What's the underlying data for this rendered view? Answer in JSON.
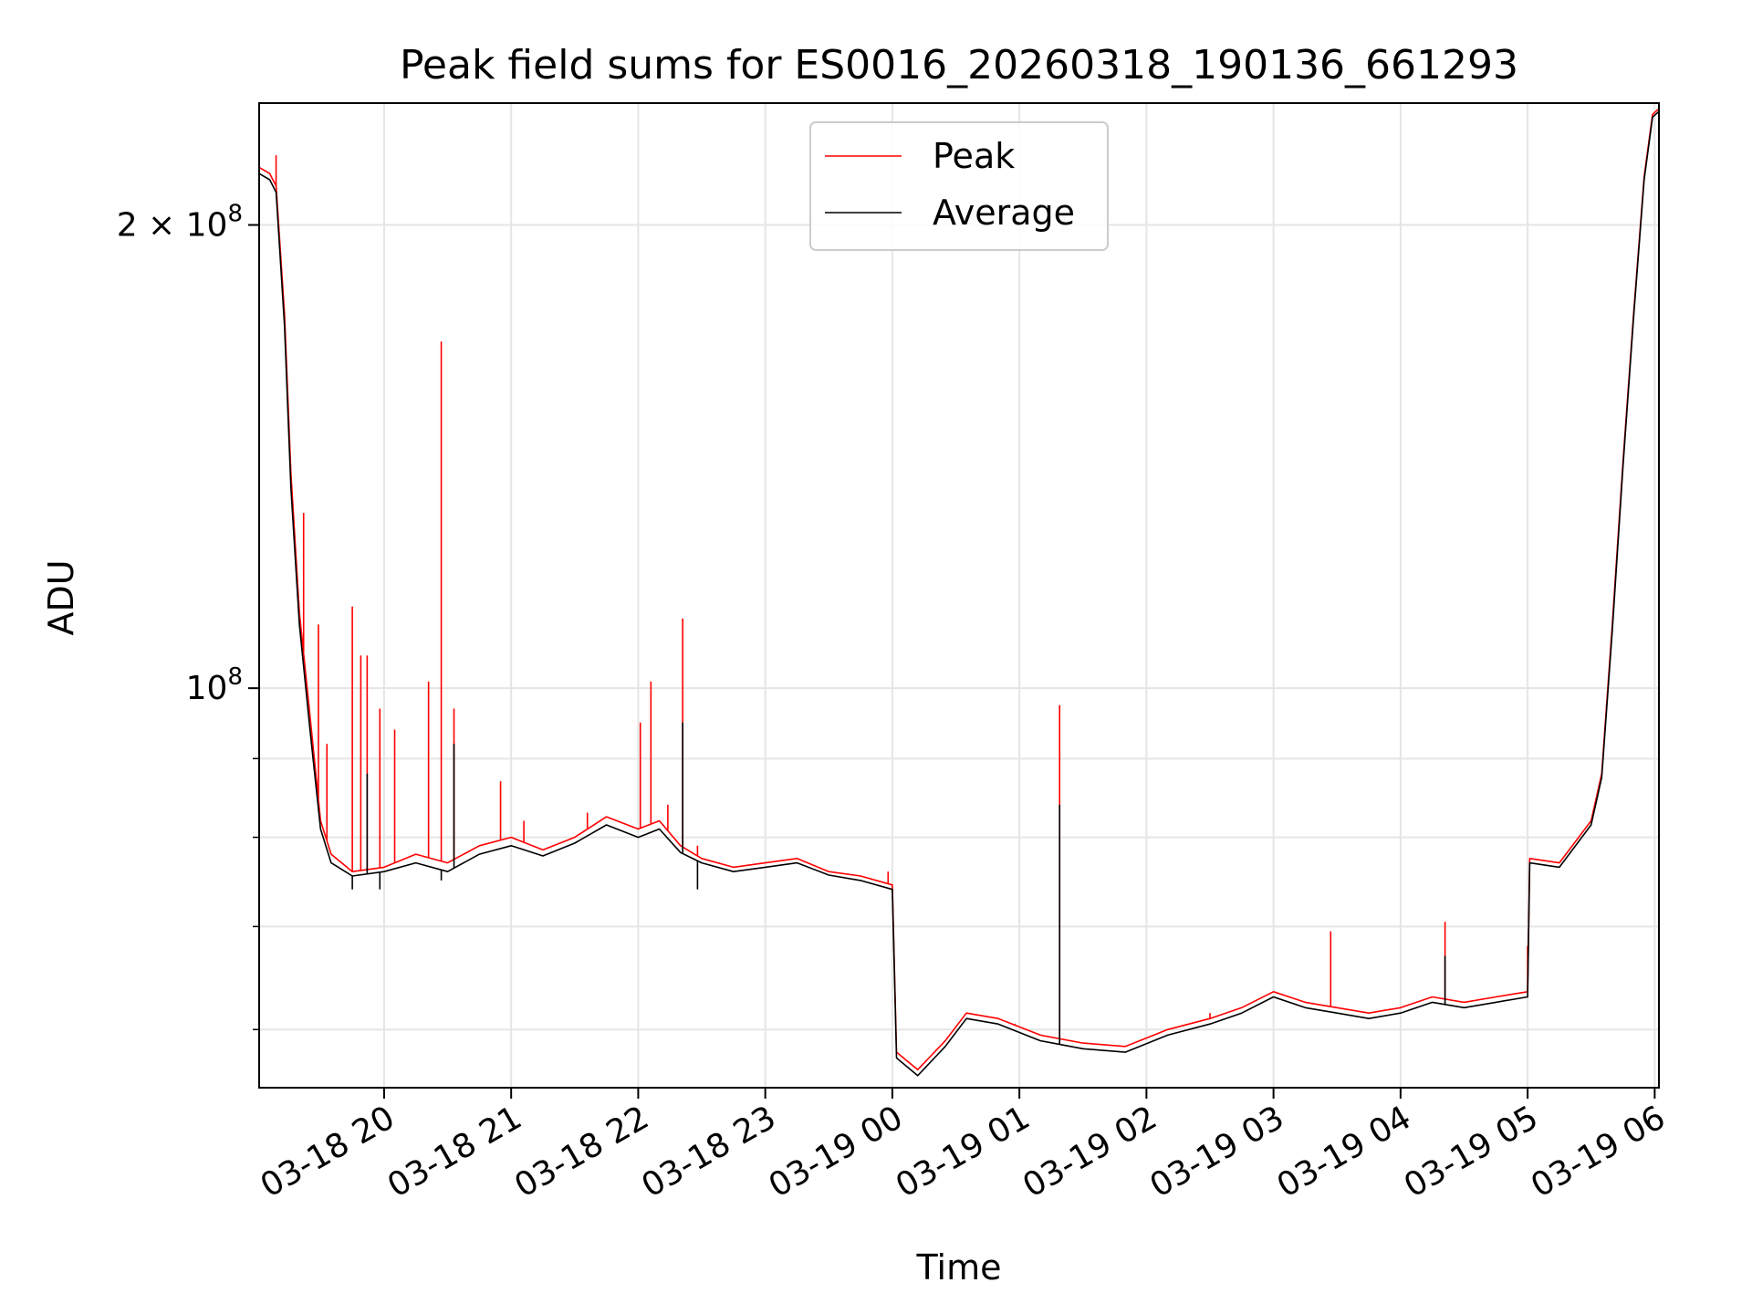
{
  "chart_data": {
    "type": "line",
    "title": "Peak field sums for ES0016_20260318_190136_661293",
    "xlabel": "Time",
    "ylabel": "ADU",
    "y_scale": "log",
    "x_range": [
      "03-18 19:01",
      "03-19 06:02"
    ],
    "ylim": [
      55000000,
      240000000
    ],
    "grid": true,
    "legend": {
      "placement": "top-center",
      "entries": [
        "Peak",
        "Average"
      ]
    },
    "x_ticks": [
      "03-18 20",
      "03-18 21",
      "03-18 22",
      "03-18 23",
      "03-19 00",
      "03-19 01",
      "03-19 02",
      "03-19 03",
      "03-19 04",
      "03-19 05",
      "03-19 06"
    ],
    "x_tick_times": [
      "03-18 20:00",
      "03-18 21:00",
      "03-18 22:00",
      "03-18 23:00",
      "03-19 00:00",
      "03-19 01:00",
      "03-19 02:00",
      "03-19 03:00",
      "03-19 04:00",
      "03-19 05:00",
      "03-19 06:00"
    ],
    "y_major_ticks": [
      {
        "value": 100000000,
        "mantissa": "",
        "exponent": "8"
      },
      {
        "value": 200000000,
        "mantissa": "2 × ",
        "exponent": "8"
      }
    ],
    "y_minor_ticks": [
      60000000,
      70000000,
      80000000,
      90000000
    ],
    "series": [
      {
        "name": "Peak",
        "color": "#ff0000",
        "points": [
          [
            "03-18 19:01",
            218000000
          ],
          [
            "03-18 19:06",
            216000000
          ],
          [
            "03-18 19:09",
            212000000
          ],
          [
            "03-18 19:13",
            175000000
          ],
          [
            "03-18 19:16",
            138000000
          ],
          [
            "03-18 19:20",
            112000000
          ],
          [
            "03-18 19:25",
            96000000
          ],
          [
            "03-18 19:30",
            82000000
          ],
          [
            "03-18 19:35",
            78000000
          ],
          [
            "03-18 19:45",
            76000000
          ],
          [
            "03-18 20:00",
            76500000
          ],
          [
            "03-18 20:15",
            78000000
          ],
          [
            "03-18 20:30",
            77000000
          ],
          [
            "03-18 20:45",
            79000000
          ],
          [
            "03-18 21:00",
            80000000
          ],
          [
            "03-18 21:15",
            78500000
          ],
          [
            "03-18 21:30",
            80000000
          ],
          [
            "03-18 21:45",
            82500000
          ],
          [
            "03-18 22:00",
            81000000
          ],
          [
            "03-18 22:10",
            82000000
          ],
          [
            "03-18 22:20",
            79000000
          ],
          [
            "03-18 22:30",
            77500000
          ],
          [
            "03-18 22:45",
            76500000
          ],
          [
            "03-18 23:00",
            77000000
          ],
          [
            "03-18 23:15",
            77500000
          ],
          [
            "03-18 23:30",
            76000000
          ],
          [
            "03-18 23:45",
            75500000
          ],
          [
            "03-19 00:00",
            74500000
          ],
          [
            "03-19 00:02",
            58000000
          ],
          [
            "03-19 00:12",
            56500000
          ],
          [
            "03-19 00:25",
            59000000
          ],
          [
            "03-19 00:35",
            61500000
          ],
          [
            "03-19 00:50",
            61000000
          ],
          [
            "03-19 01:10",
            59500000
          ],
          [
            "03-19 01:30",
            58800000
          ],
          [
            "03-19 01:50",
            58500000
          ],
          [
            "03-19 02:10",
            60000000
          ],
          [
            "03-19 02:30",
            61000000
          ],
          [
            "03-19 02:45",
            62000000
          ],
          [
            "03-19 03:00",
            63500000
          ],
          [
            "03-19 03:15",
            62500000
          ],
          [
            "03-19 03:30",
            62000000
          ],
          [
            "03-19 03:45",
            61500000
          ],
          [
            "03-19 04:00",
            62000000
          ],
          [
            "03-19 04:15",
            63000000
          ],
          [
            "03-19 04:30",
            62500000
          ],
          [
            "03-19 04:45",
            63000000
          ],
          [
            "03-19 05:00",
            63500000
          ],
          [
            "03-19 05:01",
            77500000
          ],
          [
            "03-19 05:15",
            77000000
          ],
          [
            "03-19 05:30",
            82000000
          ],
          [
            "03-19 05:35",
            88000000
          ],
          [
            "03-19 05:40",
            110000000
          ],
          [
            "03-19 05:45",
            140000000
          ],
          [
            "03-19 05:50",
            175000000
          ],
          [
            "03-19 05:55",
            215000000
          ],
          [
            "03-19 05:59",
            236000000
          ],
          [
            "03-19 06:02",
            238000000
          ]
        ],
        "spikes": [
          [
            "03-18 19:09",
            222000000
          ],
          [
            "03-18 19:22",
            130000000
          ],
          [
            "03-18 19:29",
            110000000
          ],
          [
            "03-18 19:33",
            92000000
          ],
          [
            "03-18 19:45",
            113000000
          ],
          [
            "03-18 19:49",
            105000000
          ],
          [
            "03-18 19:52",
            105000000
          ],
          [
            "03-18 19:58",
            97000000
          ],
          [
            "03-18 20:05",
            94000000
          ],
          [
            "03-18 20:21",
            101000000
          ],
          [
            "03-18 20:27",
            168000000
          ],
          [
            "03-18 20:33",
            97000000
          ],
          [
            "03-18 20:55",
            87000000
          ],
          [
            "03-18 21:06",
            82000000
          ],
          [
            "03-18 21:36",
            83000000
          ],
          [
            "03-18 22:01",
            95000000
          ],
          [
            "03-18 22:06",
            101000000
          ],
          [
            "03-18 22:14",
            84000000
          ],
          [
            "03-18 22:21",
            111000000
          ],
          [
            "03-18 22:28",
            79000000
          ],
          [
            "03-18 23:58",
            76000000
          ],
          [
            "03-19 00:58",
            60500000
          ],
          [
            "03-19 01:19",
            97500000
          ],
          [
            "03-19 02:10",
            60000000
          ],
          [
            "03-19 02:30",
            61500000
          ],
          [
            "03-19 03:27",
            69500000
          ],
          [
            "03-19 04:21",
            70500000
          ],
          [
            "03-19 05:00",
            68000000
          ]
        ]
      },
      {
        "name": "Average",
        "color": "#000000",
        "points": [
          [
            "03-18 19:01",
            216000000
          ],
          [
            "03-18 19:06",
            214000000
          ],
          [
            "03-18 19:09",
            210000000
          ],
          [
            "03-18 19:13",
            172000000
          ],
          [
            "03-18 19:16",
            135000000
          ],
          [
            "03-18 19:20",
            110000000
          ],
          [
            "03-18 19:25",
            94000000
          ],
          [
            "03-18 19:30",
            81000000
          ],
          [
            "03-18 19:35",
            77000000
          ],
          [
            "03-18 19:45",
            75500000
          ],
          [
            "03-18 20:00",
            76000000
          ],
          [
            "03-18 20:15",
            77000000
          ],
          [
            "03-18 20:30",
            76000000
          ],
          [
            "03-18 20:45",
            78000000
          ],
          [
            "03-18 21:00",
            79000000
          ],
          [
            "03-18 21:15",
            77800000
          ],
          [
            "03-18 21:30",
            79300000
          ],
          [
            "03-18 21:45",
            81500000
          ],
          [
            "03-18 22:00",
            80000000
          ],
          [
            "03-18 22:10",
            81000000
          ],
          [
            "03-18 22:20",
            78200000
          ],
          [
            "03-18 22:30",
            77000000
          ],
          [
            "03-18 22:45",
            76000000
          ],
          [
            "03-18 23:00",
            76500000
          ],
          [
            "03-18 23:15",
            77000000
          ],
          [
            "03-18 23:30",
            75600000
          ],
          [
            "03-18 23:45",
            75000000
          ],
          [
            "03-19 00:00",
            74000000
          ],
          [
            "03-19 00:02",
            57500000
          ],
          [
            "03-19 00:12",
            56000000
          ],
          [
            "03-19 00:25",
            58500000
          ],
          [
            "03-19 00:35",
            61000000
          ],
          [
            "03-19 00:50",
            60500000
          ],
          [
            "03-19 01:10",
            59000000
          ],
          [
            "03-19 01:30",
            58300000
          ],
          [
            "03-19 01:50",
            58000000
          ],
          [
            "03-19 02:10",
            59500000
          ],
          [
            "03-19 02:30",
            60500000
          ],
          [
            "03-19 02:45",
            61500000
          ],
          [
            "03-19 03:00",
            63000000
          ],
          [
            "03-19 03:15",
            62000000
          ],
          [
            "03-19 03:30",
            61500000
          ],
          [
            "03-19 03:45",
            61000000
          ],
          [
            "03-19 04:00",
            61500000
          ],
          [
            "03-19 04:15",
            62500000
          ],
          [
            "03-19 04:30",
            62000000
          ],
          [
            "03-19 04:45",
            62500000
          ],
          [
            "03-19 05:00",
            63000000
          ],
          [
            "03-19 05:01",
            77000000
          ],
          [
            "03-19 05:15",
            76500000
          ],
          [
            "03-19 05:30",
            81500000
          ],
          [
            "03-19 05:35",
            87500000
          ],
          [
            "03-19 05:40",
            109000000
          ],
          [
            "03-19 05:45",
            139000000
          ],
          [
            "03-19 05:50",
            174000000
          ],
          [
            "03-19 05:55",
            214000000
          ],
          [
            "03-19 05:59",
            235000000
          ],
          [
            "03-19 06:02",
            237000000
          ]
        ],
        "spikes": [
          [
            "03-18 19:45",
            74000000
          ],
          [
            "03-18 19:52",
            88000000
          ],
          [
            "03-18 19:58",
            74000000
          ],
          [
            "03-18 20:27",
            75000000
          ],
          [
            "03-18 20:33",
            92000000
          ],
          [
            "03-18 22:21",
            95000000
          ],
          [
            "03-18 22:28",
            74000000
          ],
          [
            "03-19 01:19",
            84000000
          ],
          [
            "03-19 01:19",
            59000000
          ],
          [
            "03-19 04:21",
            67000000
          ]
        ]
      }
    ]
  }
}
